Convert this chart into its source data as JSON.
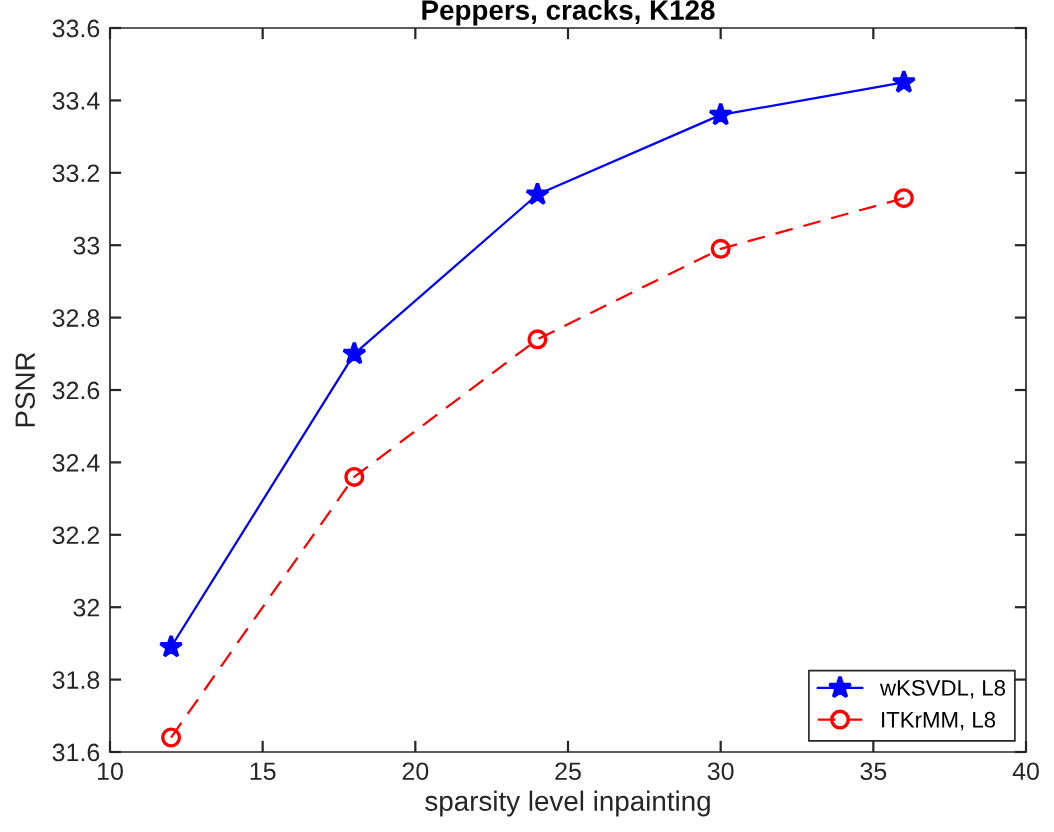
{
  "chart_data": {
    "type": "line",
    "title": "Peppers, cracks, K128",
    "xlabel": "sparsity level inpainting",
    "ylabel": "PSNR",
    "x": [
      12,
      18,
      24,
      30,
      36
    ],
    "series": [
      {
        "name": "wKSVDL, L8",
        "color": "#0000ff",
        "values": [
          31.89,
          32.7,
          33.14,
          33.36,
          33.45
        ],
        "marker": "star",
        "line_style": "solid"
      },
      {
        "name": "ITKrMM, L8",
        "color": "#ff0000",
        "values": [
          31.64,
          32.36,
          32.74,
          32.99,
          33.13
        ],
        "marker": "circle",
        "line_style": "dashed"
      }
    ],
    "xlim": [
      10,
      40
    ],
    "xticks": [
      10,
      15,
      20,
      25,
      30,
      35,
      40
    ],
    "ylim": [
      31.6,
      33.6
    ],
    "yticks": [
      31.6,
      31.8,
      32,
      32.2,
      32.4,
      32.6,
      32.8,
      33,
      33.2,
      33.4,
      33.6
    ],
    "grid": false,
    "legend": "bottom right"
  }
}
